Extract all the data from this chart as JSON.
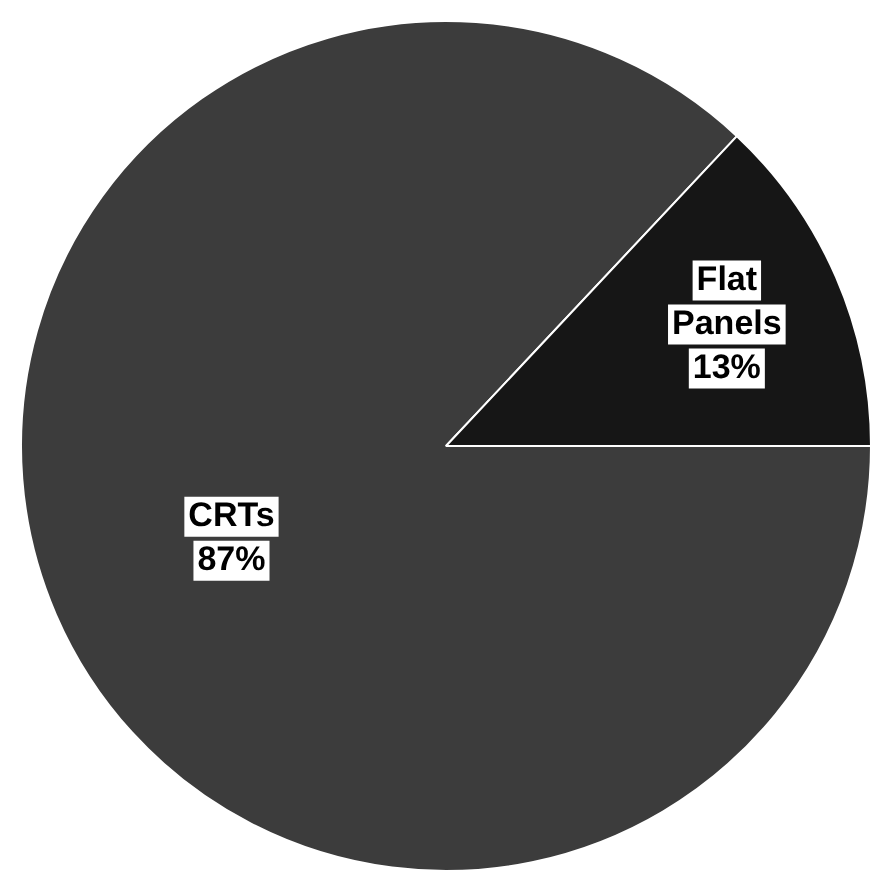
{
  "chart_data": {
    "type": "pie",
    "categories": [
      "CRTs",
      "Flat Panels"
    ],
    "values": [
      87,
      13
    ],
    "colors": [
      "#3c3c3c",
      "#161616"
    ],
    "value_labels": [
      "87%",
      "13%"
    ],
    "legend": false
  }
}
